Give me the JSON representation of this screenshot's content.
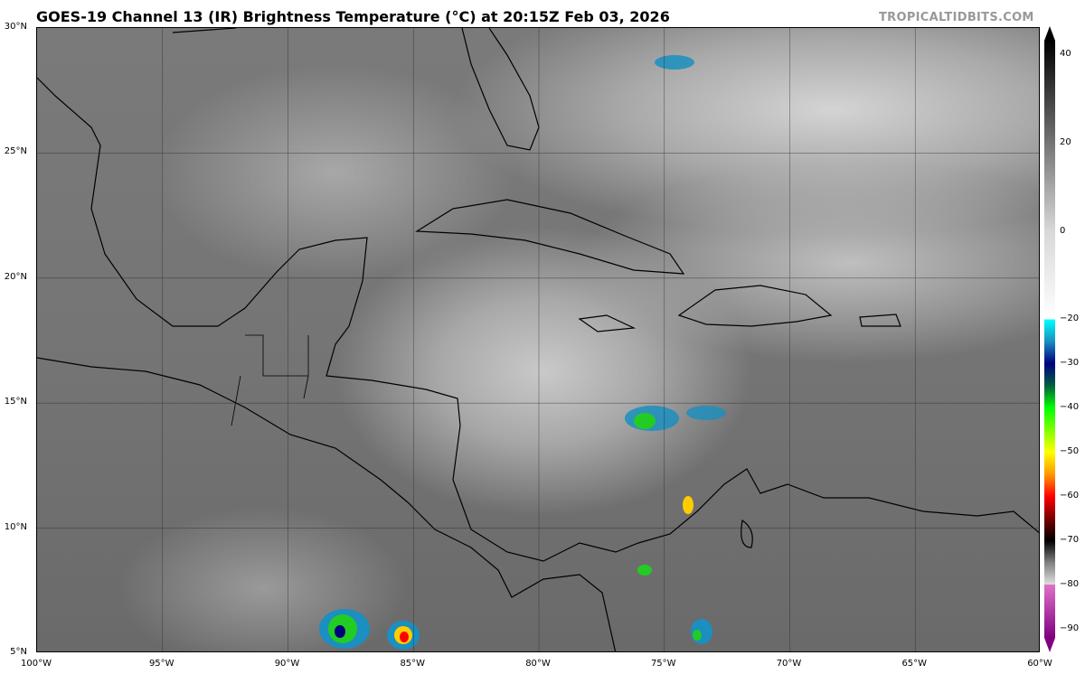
{
  "title": "GOES-19 Channel 13 (IR) Brightness Temperature (°C) at 20:15Z Feb 03, 2026",
  "brand": "TROPICALTIDBITS.COM",
  "map": {
    "extent": {
      "lon": [
        -100,
        -60
      ],
      "lat": [
        5,
        30
      ]
    },
    "grid_step_deg": 5,
    "lat_labels": [
      "30°N",
      "25°N",
      "20°N",
      "15°N",
      "10°N",
      "5°N"
    ],
    "lon_labels": [
      "100°W",
      "95°W",
      "90°W",
      "85°W",
      "80°W",
      "75°W",
      "70°W",
      "65°W",
      "60°W"
    ]
  },
  "colorbar": {
    "unit": "°C",
    "range": [
      -92,
      43
    ],
    "tick_labels": [
      "40",
      "20",
      "0",
      "−20",
      "−30",
      "−40",
      "−50",
      "−60",
      "−70",
      "−80",
      "−90"
    ],
    "tick_values": [
      40,
      20,
      0,
      -20,
      -30,
      -40,
      -50,
      -60,
      -70,
      -80,
      -90
    ],
    "stops": [
      {
        "v": 43,
        "c": "#000000"
      },
      {
        "v": 0,
        "c": "#d8d8d8"
      },
      {
        "v": -20,
        "c": "#ffffff"
      },
      {
        "v": -20,
        "c": "#00ffff"
      },
      {
        "v": -25,
        "c": "#1a8fc0"
      },
      {
        "v": -30,
        "c": "#000080"
      },
      {
        "v": -35,
        "c": "#006040"
      },
      {
        "v": -40,
        "c": "#00ff00"
      },
      {
        "v": -50,
        "c": "#ffff00"
      },
      {
        "v": -55,
        "c": "#ff9900"
      },
      {
        "v": -60,
        "c": "#ff0000"
      },
      {
        "v": -66,
        "c": "#600000"
      },
      {
        "v": -70,
        "c": "#000000"
      },
      {
        "v": -75,
        "c": "#808080"
      },
      {
        "v": -80,
        "c": "#e0e0e0"
      },
      {
        "v": -80,
        "c": "#e070c8"
      },
      {
        "v": -92,
        "c": "#800080"
      }
    ]
  }
}
